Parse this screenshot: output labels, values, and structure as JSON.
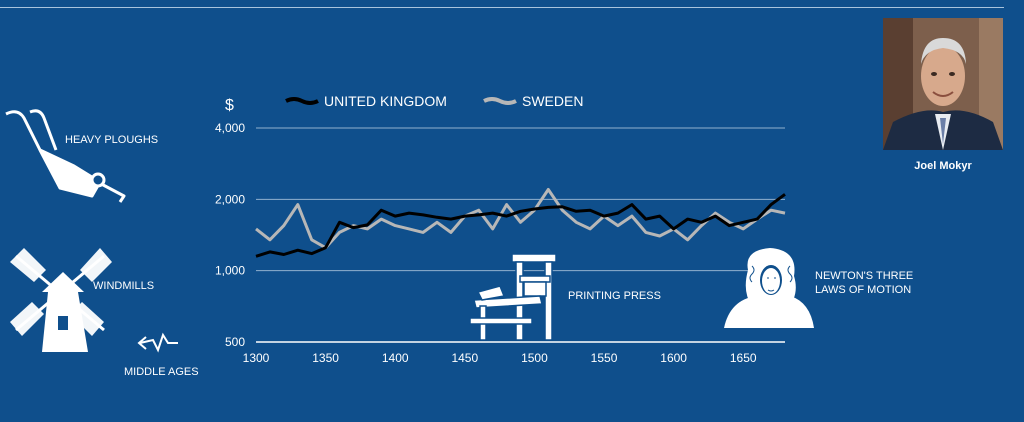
{
  "colors": {
    "background": "#0f4f8c",
    "uk_line": "#000000",
    "sweden_line": "#b7b7b7",
    "grid": "#c9d9ea"
  },
  "annotations": {
    "heavy_ploughs": "HEAVY PLOUGHS",
    "windmills": "WINDMILLS",
    "middle_ages": "MIDDLE AGES",
    "printing_press": "PRINTING PRESS",
    "newton_line1": "NEWTON'S THREE",
    "newton_line2": "LAWS OF MOTION"
  },
  "portrait": {
    "caption": "Joel Mokyr"
  },
  "icons": [
    "plough-icon",
    "windmill-icon",
    "arrow-left-icon",
    "printing-press-icon",
    "newton-portrait-icon"
  ],
  "chart_data": {
    "type": "line",
    "title": "",
    "ylabel": "$",
    "xlabel": "",
    "y_scale": "log",
    "xlim": [
      1300,
      1680
    ],
    "ylim": [
      500,
      4000
    ],
    "xticks": [
      1300,
      1350,
      1400,
      1450,
      1500,
      1550,
      1600,
      1650
    ],
    "yticks": [
      500,
      1000,
      2000,
      4000
    ],
    "ytick_labels": [
      "500",
      "1,000",
      "2,000",
      "4,000"
    ],
    "grid": "horizontal",
    "legend_position": "top",
    "x": [
      1300,
      1310,
      1320,
      1330,
      1340,
      1350,
      1360,
      1370,
      1380,
      1390,
      1400,
      1410,
      1420,
      1430,
      1440,
      1450,
      1460,
      1470,
      1480,
      1490,
      1500,
      1510,
      1520,
      1530,
      1540,
      1550,
      1560,
      1570,
      1580,
      1590,
      1600,
      1610,
      1620,
      1630,
      1640,
      1650,
      1660,
      1670,
      1680
    ],
    "series": [
      {
        "name": "UNITED KINGDOM",
        "color": "#000000",
        "values": [
          1150,
          1200,
          1170,
          1220,
          1180,
          1250,
          1600,
          1520,
          1560,
          1800,
          1700,
          1750,
          1720,
          1680,
          1650,
          1700,
          1720,
          1750,
          1700,
          1780,
          1820,
          1850,
          1860,
          1780,
          1800,
          1700,
          1750,
          1900,
          1650,
          1700,
          1500,
          1650,
          1600,
          1700,
          1550,
          1600,
          1650,
          1900,
          2100
        ]
      },
      {
        "name": "SWEDEN",
        "color": "#b7b7b7",
        "values": [
          1500,
          1350,
          1550,
          1900,
          1350,
          1250,
          1450,
          1550,
          1500,
          1650,
          1550,
          1500,
          1450,
          1600,
          1450,
          1700,
          1800,
          1500,
          1900,
          1600,
          1800,
          2200,
          1800,
          1600,
          1500,
          1700,
          1550,
          1700,
          1450,
          1400,
          1500,
          1350,
          1550,
          1750,
          1600,
          1500,
          1650,
          1800,
          1750
        ]
      }
    ]
  }
}
